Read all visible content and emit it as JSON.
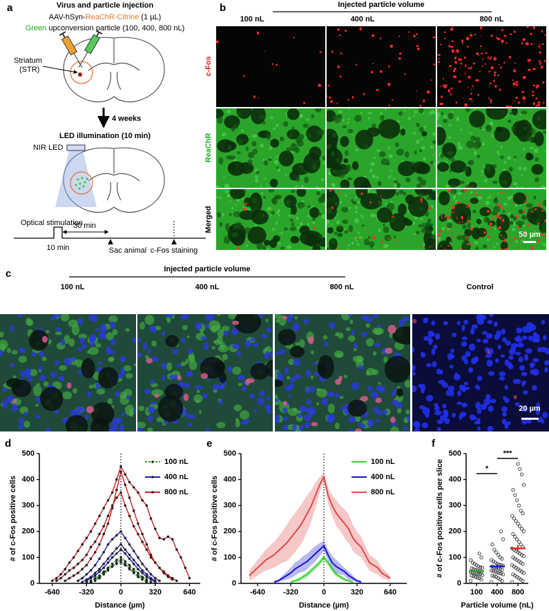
{
  "panels": {
    "a": {
      "label": "a",
      "title": "Virus and particle injection",
      "virus": [
        "AAV-hSyn-",
        "ReaChR-Citrine",
        " (1 µL)"
      ],
      "particle": [
        "Green",
        " upconversion particle (100, 400, 800 nL)"
      ],
      "region": [
        "Striatum",
        "(STR)"
      ],
      "interval": "4 weeks",
      "illumination": "LED illumination (10 min)",
      "led": "NIR LED",
      "timeline": {
        "stimulation": "Optical stimulation",
        "delay": "30 min",
        "duration": "10 min",
        "sacrifice": "Sac animal",
        "staining": "c-Fos staining"
      }
    },
    "b": {
      "label": "b",
      "header": "Injected particle volume",
      "columns": [
        "100 nL",
        "400 nL",
        "800 nL"
      ],
      "rows": [
        "c-Fos",
        "ReaChR",
        "Merged"
      ],
      "scale_bar": "50 µm"
    },
    "c": {
      "label": "c",
      "header": "Injected particle volume",
      "columns": [
        "100 nL",
        "400 nL",
        "800 nL",
        "Control"
      ],
      "scale_bar": "20 µm"
    }
  },
  "chart_data": [
    {
      "type": "line",
      "label": "d",
      "xlabel": "Distance (µm)",
      "ylabel": "# of c-Fos positive cells",
      "x": [
        -640,
        -600,
        -560,
        -520,
        -480,
        -440,
        -400,
        -360,
        -320,
        -280,
        -240,
        -200,
        -160,
        -120,
        -80,
        -40,
        0,
        40,
        80,
        120,
        160,
        200,
        240,
        280,
        320,
        360,
        400,
        440,
        480,
        520,
        560,
        600,
        640
      ],
      "xlim": [
        -760,
        740
      ],
      "xticks": [
        -640,
        -320,
        0,
        320,
        640
      ],
      "ylim": [
        0,
        500
      ],
      "yticks": [
        0,
        100,
        200,
        300,
        400,
        500
      ],
      "legend": "upper right",
      "markers": true,
      "zero_line": true,
      "series": [
        {
          "name": "100 nL",
          "color": "#2ca02c",
          "dashed": true,
          "traces": [
            [
              null,
              null,
              null,
              null,
              null,
              null,
              null,
              null,
              5,
              10,
              20,
              30,
              45,
              60,
              75,
              90,
              100,
              85,
              70,
              55,
              40,
              25,
              15,
              5,
              null,
              null,
              null,
              null,
              null,
              null,
              null,
              null,
              null
            ],
            [
              null,
              null,
              null,
              null,
              null,
              null,
              null,
              null,
              null,
              5,
              10,
              20,
              35,
              50,
              65,
              80,
              90,
              75,
              60,
              45,
              30,
              20,
              10,
              null,
              null,
              null,
              null,
              null,
              null,
              null,
              null,
              null,
              null
            ],
            [
              null,
              null,
              null,
              null,
              null,
              null,
              null,
              null,
              null,
              5,
              15,
              25,
              40,
              55,
              65,
              75,
              80,
              70,
              55,
              40,
              25,
              15,
              5,
              null,
              null,
              null,
              null,
              null,
              null,
              null,
              null,
              null,
              null
            ]
          ]
        },
        {
          "name": "400 nL",
          "color": "#1a1ab8",
          "traces": [
            [
              null,
              null,
              null,
              null,
              null,
              null,
              10,
              20,
              35,
              50,
              70,
              95,
              120,
              150,
              170,
              185,
              200,
              175,
              150,
              125,
              100,
              75,
              55,
              35,
              20,
              10,
              null,
              null,
              null,
              null,
              null,
              null,
              null
            ],
            [
              null,
              null,
              null,
              null,
              null,
              null,
              null,
              5,
              15,
              25,
              40,
              55,
              75,
              95,
              115,
              135,
              150,
              130,
              110,
              90,
              70,
              50,
              35,
              20,
              10,
              null,
              null,
              null,
              null,
              null,
              null,
              null,
              null
            ],
            [
              null,
              null,
              null,
              null,
              null,
              null,
              null,
              null,
              10,
              20,
              30,
              45,
              60,
              80,
              100,
              115,
              130,
              115,
              95,
              75,
              55,
              40,
              25,
              15,
              5,
              null,
              null,
              null,
              null,
              null,
              null,
              null,
              null
            ]
          ]
        },
        {
          "name": "800 nL",
          "color": "#c81e1e",
          "traces": [
            [
              10,
              20,
              35,
              55,
              80,
              100,
              125,
              150,
              175,
              200,
              230,
              260,
              290,
              320,
              350,
              400,
              450,
              420,
              390,
              370,
              350,
              320,
              300,
              250,
              210,
              175,
              170,
              180,
              170,
              130,
              100,
              60,
              20
            ],
            [
              null,
              null,
              null,
              10,
              20,
              30,
              40,
              55,
              70,
              95,
              120,
              150,
              190,
              230,
              290,
              360,
              430,
              380,
              330,
              280,
              230,
              190,
              150,
              110,
              80,
              60,
              40,
              25,
              15,
              null,
              null,
              null,
              null
            ],
            [
              null,
              10,
              20,
              35,
              50,
              60,
              75,
              90,
              110,
              140,
              160,
              190,
              220,
              260,
              300,
              330,
              350,
              300,
              260,
              220,
              190,
              160,
              130,
              100,
              80,
              60,
              45,
              30,
              20,
              10,
              null,
              null,
              null
            ]
          ]
        }
      ]
    },
    {
      "type": "line",
      "label": "e",
      "xlabel": "Distance (µm)",
      "ylabel": "# of c-Fos positive cells",
      "x": [
        -720,
        -680,
        -640,
        -600,
        -560,
        -520,
        -480,
        -440,
        -400,
        -360,
        -320,
        -280,
        -240,
        -200,
        -160,
        -120,
        -80,
        -40,
        0,
        40,
        80,
        120,
        160,
        200,
        240,
        280,
        320,
        360,
        400,
        440,
        480,
        520,
        560,
        600,
        640
      ],
      "xlim": [
        -800,
        800
      ],
      "xticks": [
        -640,
        -320,
        0,
        320,
        640
      ],
      "ylim": [
        0,
        500
      ],
      "yticks": [
        0,
        100,
        200,
        300,
        400,
        500
      ],
      "legend": "upper right",
      "markers": false,
      "zero_line": true,
      "series": [
        {
          "name": "100 nL",
          "color": "#2fd42f",
          "values": [
            null,
            null,
            null,
            null,
            null,
            null,
            null,
            null,
            null,
            null,
            5,
            10,
            15,
            25,
            35,
            50,
            65,
            80,
            100,
            80,
            55,
            35,
            25,
            15,
            10,
            5,
            null,
            null,
            null,
            null,
            null,
            null,
            null,
            null,
            null
          ],
          "errors": [
            null,
            null,
            null,
            null,
            null,
            null,
            null,
            null,
            null,
            null,
            5,
            5,
            8,
            10,
            12,
            12,
            12,
            10,
            10,
            12,
            12,
            10,
            8,
            5,
            5,
            3,
            null,
            null,
            null,
            null,
            null,
            null,
            null,
            null,
            null
          ]
        },
        {
          "name": "400 nL",
          "color": "#1414d0",
          "values": [
            null,
            null,
            null,
            null,
            null,
            null,
            5,
            10,
            20,
            30,
            40,
            55,
            65,
            75,
            85,
            100,
            115,
            130,
            145,
            110,
            80,
            65,
            55,
            45,
            30,
            20,
            10,
            5,
            null,
            null,
            null,
            null,
            null,
            null,
            null
          ],
          "errors": [
            null,
            null,
            null,
            null,
            null,
            null,
            5,
            5,
            10,
            15,
            20,
            25,
            25,
            30,
            30,
            30,
            30,
            25,
            20,
            20,
            25,
            25,
            20,
            15,
            15,
            10,
            5,
            5,
            null,
            null,
            null,
            null,
            null,
            null,
            null
          ]
        },
        {
          "name": "800 nL",
          "color": "#e04848",
          "values": [
            30,
            45,
            60,
            75,
            90,
            100,
            110,
            125,
            140,
            155,
            175,
            195,
            215,
            240,
            270,
            300,
            340,
            380,
            410,
            340,
            300,
            270,
            250,
            230,
            210,
            175,
            155,
            140,
            110,
            80,
            70,
            60,
            40,
            30,
            20
          ],
          "errors": [
            20,
            25,
            30,
            35,
            40,
            45,
            50,
            55,
            60,
            70,
            75,
            75,
            75,
            75,
            70,
            60,
            50,
            30,
            15,
            30,
            40,
            50,
            50,
            55,
            55,
            50,
            45,
            40,
            35,
            30,
            30,
            25,
            20,
            15,
            10
          ]
        }
      ]
    },
    {
      "type": "strip",
      "label": "f",
      "xlabel": "Particle volume (nL)",
      "ylabel": "# of c-Fos positive cells per slice",
      "categories": [
        "100",
        "400",
        "800"
      ],
      "ylim": [
        0,
        500
      ],
      "yticks": [
        0,
        100,
        200,
        300,
        400,
        500
      ],
      "points": [
        [
          10,
          15,
          20,
          22,
          25,
          28,
          30,
          32,
          35,
          36,
          38,
          40,
          42,
          44,
          45,
          47,
          50,
          52,
          55,
          58,
          60,
          62,
          65,
          70,
          75,
          80,
          90,
          100,
          115
        ],
        [
          5,
          10,
          15,
          20,
          25,
          28,
          30,
          35,
          38,
          40,
          42,
          45,
          48,
          50,
          52,
          55,
          58,
          60,
          62,
          65,
          68,
          70,
          72,
          75,
          80,
          85,
          90,
          95,
          100,
          110,
          120,
          130,
          150,
          170,
          200
        ],
        [
          5,
          10,
          15,
          20,
          25,
          30,
          35,
          40,
          45,
          50,
          55,
          60,
          65,
          70,
          75,
          80,
          85,
          90,
          95,
          100,
          105,
          110,
          115,
          120,
          125,
          130,
          135,
          140,
          150,
          160,
          170,
          180,
          190,
          200,
          210,
          220,
          230,
          240,
          250,
          260,
          270,
          280,
          300,
          320,
          340,
          360,
          380,
          420,
          440,
          460
        ]
      ],
      "means": [
        47,
        65,
        135
      ],
      "errors": [
        5,
        8,
        13
      ],
      "colors": [
        "#2ca02c",
        "#1a1ab8",
        "#e02a2a"
      ],
      "significance": [
        "*",
        "***"
      ]
    }
  ]
}
